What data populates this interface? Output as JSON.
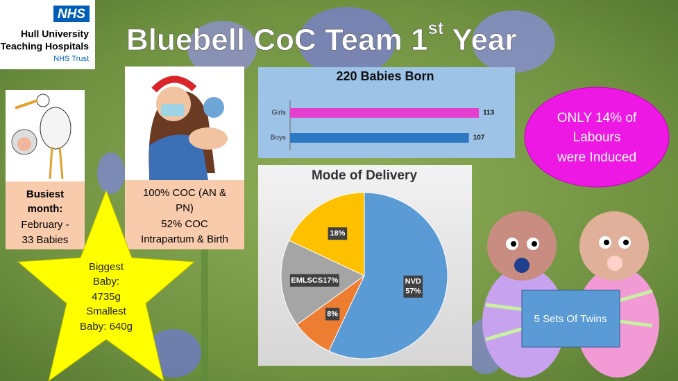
{
  "logo": {
    "badge": "NHS",
    "lines": [
      "Hull University",
      "Teaching Hospitals"
    ],
    "trust": "NHS Trust"
  },
  "title": {
    "main": "Bluebell CoC Team 1",
    "sup": "st",
    "end": "Year"
  },
  "busiest": {
    "heading": [
      "Busiest",
      "month:"
    ],
    "lines": [
      "February -",
      "33 Babies"
    ]
  },
  "coc": {
    "lines": [
      "100% COC (AN &",
      "PN)",
      "52% COC",
      "Intrapartum & Birth"
    ]
  },
  "star": {
    "lines": [
      "Biggest",
      "Baby:",
      "4735g",
      "Smallest",
      "Baby: 640g"
    ]
  },
  "induced": {
    "lines": [
      "ONLY 14% of",
      "Labours",
      "were Induced"
    ]
  },
  "twins": {
    "label": "5 Sets Of Twins"
  },
  "chart_data": [
    {
      "type": "bar",
      "orientation": "horizontal",
      "title": "220 Babies Born",
      "categories": [
        "Girls",
        "Boys"
      ],
      "values": [
        113,
        107
      ],
      "colors": [
        "#e53fcf",
        "#2e78c2"
      ],
      "xlim": [
        0,
        120
      ]
    },
    {
      "type": "pie",
      "title": "Mode of Delivery",
      "categories": [
        "NVD",
        null,
        "EMLSCS",
        null
      ],
      "values": [
        57,
        8,
        17,
        18
      ],
      "value_labels": [
        "57%",
        "8%",
        "17%",
        "18%"
      ],
      "colors": [
        "#5b9bd5",
        "#ed7d31",
        "#a5a5a5",
        "#ffc000"
      ]
    }
  ]
}
